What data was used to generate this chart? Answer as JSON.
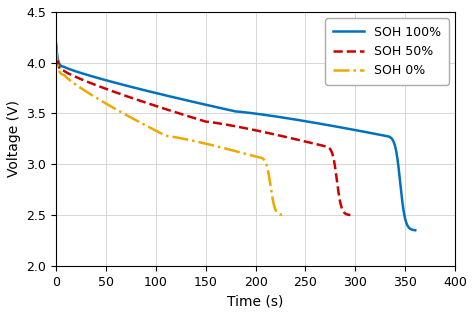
{
  "title": "",
  "xlabel": "Time (s)",
  "ylabel": "Voltage (V)",
  "xlim": [
    0,
    400
  ],
  "ylim": [
    2,
    4.5
  ],
  "xticks": [
    0,
    50,
    100,
    150,
    200,
    250,
    300,
    350,
    400
  ],
  "yticks": [
    2.0,
    2.5,
    3.0,
    3.5,
    4.0,
    4.5
  ],
  "grid": true,
  "background_color": "#ffffff",
  "series": [
    {
      "label": "SOH 100%",
      "color": "#0072BD",
      "linestyle": "solid",
      "linewidth": 1.8,
      "t_end": 360,
      "v_peak": 4.19,
      "v_after_drop": 3.96,
      "v_mid": 3.52,
      "v_knee": 3.28,
      "v_end": 2.35,
      "t_drop_end": 8,
      "t_mid": 180,
      "t_knee": 330,
      "t_steep": 358
    },
    {
      "label": "SOH 50%",
      "color": "#CC0000",
      "linestyle": "dashed",
      "linewidth": 1.8,
      "t_end": 295,
      "v_peak": 4.16,
      "v_after_drop": 3.92,
      "v_mid": 3.42,
      "v_knee": 3.18,
      "v_end": 2.5,
      "t_drop_end": 8,
      "t_mid": 150,
      "t_knee": 268,
      "t_steep": 293
    },
    {
      "label": "SOH 0%",
      "color": "#EEA800",
      "linestyle": "dashdot",
      "linewidth": 1.8,
      "t_end": 228,
      "v_peak": 4.18,
      "v_after_drop": 3.88,
      "v_mid": 3.28,
      "v_knee": 3.07,
      "v_end": 2.5,
      "t_drop_end": 8,
      "t_mid": 110,
      "t_knee": 202,
      "t_steep": 226
    }
  ],
  "legend_loc": "upper right",
  "legend_fontsize": 9,
  "figsize": [
    4.74,
    3.15
  ],
  "dpi": 100
}
